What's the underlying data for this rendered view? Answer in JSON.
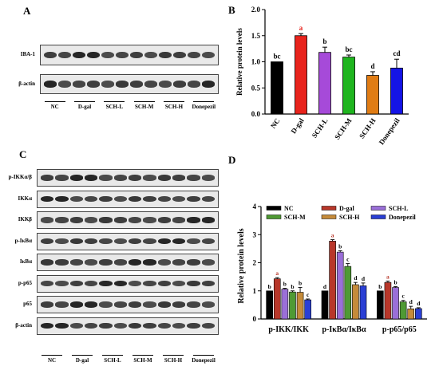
{
  "panels": {
    "a": "A",
    "b": "B",
    "c": "C",
    "d": "D"
  },
  "groups": [
    "NC",
    "D-gal",
    "SCH-L",
    "SCH-M",
    "SCH-H",
    "Donepezil"
  ],
  "colors": {
    "NC": "#000000",
    "D-gal": "#e8231c",
    "SCH-L": "#a64ad9",
    "SCH-M": "#1fb51f",
    "SCH-H": "#e07c14",
    "Donepezil": "#1414e6",
    "d_NC": "#000000",
    "d_D-gal": "#b8372a",
    "d_SCH-L": "#9a6fd8",
    "d_SCH-M": "#4f9a34",
    "d_SCH-H": "#c58b3a",
    "d_Donepezil": "#2a3fd4"
  },
  "blots_a": [
    "IBA-1",
    "β-actin"
  ],
  "blots_c": [
    "p-IKKα/β",
    "IKKα",
    "IKKβ",
    "p-IκBα",
    "IκBα",
    "p-p65",
    "p65",
    "β-actin"
  ],
  "chart_data": [
    {
      "type": "bar",
      "title": "",
      "ylabel": "Relative protein levels",
      "categories": [
        "NC",
        "D-gal",
        "SCH-L",
        "SCH-M",
        "SCH-H",
        "Donepezil"
      ],
      "values": [
        1.0,
        1.5,
        1.18,
        1.09,
        0.74,
        0.88
      ],
      "errors": [
        0.0,
        0.04,
        0.1,
        0.04,
        0.07,
        0.17
      ],
      "letters": [
        "bc",
        "a",
        "b",
        "bc",
        "d",
        "cd"
      ],
      "ylim": [
        0,
        2.0
      ],
      "yticks": [
        "0.0",
        "0.5",
        "1.0",
        "1.5",
        "2.0"
      ]
    },
    {
      "type": "bar",
      "title": "",
      "ylabel": "Relative protein levels",
      "categories": [
        "p-IKK/IKK",
        "p-IκBα/IκBα",
        "p-p65/p65"
      ],
      "ylim": [
        0,
        4
      ],
      "yticks": [
        "0",
        "1",
        "2",
        "3",
        "4"
      ],
      "legend": [
        "NC",
        "D-gal",
        "SCH-L",
        "SCH-M",
        "SCH-H",
        "Donepezil"
      ],
      "series": [
        {
          "name": "NC",
          "values": [
            1.0,
            1.0,
            1.0
          ],
          "errors": [
            0,
            0,
            0
          ],
          "letters": [
            "b",
            "d",
            "b"
          ]
        },
        {
          "name": "D-gal",
          "values": [
            1.43,
            2.77,
            1.3
          ],
          "errors": [
            0.04,
            0.05,
            0.05
          ],
          "letters": [
            "a",
            "a",
            "a"
          ]
        },
        {
          "name": "SCH-L",
          "values": [
            1.06,
            2.38,
            1.12
          ],
          "errors": [
            0.03,
            0.05,
            0.03
          ],
          "letters": [
            "b",
            "b",
            "b"
          ]
        },
        {
          "name": "SCH-M",
          "values": [
            0.96,
            1.87,
            0.61
          ],
          "errors": [
            0.04,
            0.1,
            0.05
          ],
          "letters": [
            "b",
            "c",
            "c"
          ]
        },
        {
          "name": "SCH-H",
          "values": [
            0.95,
            1.22,
            0.36
          ],
          "errors": [
            0.17,
            0.08,
            0.09
          ],
          "letters": [
            "b",
            "d",
            "d"
          ]
        },
        {
          "name": "Donepezil",
          "values": [
            0.68,
            1.18,
            0.37
          ],
          "errors": [
            0.03,
            0.1,
            0.03
          ],
          "letters": [
            "c",
            "d",
            "d"
          ]
        }
      ]
    }
  ]
}
